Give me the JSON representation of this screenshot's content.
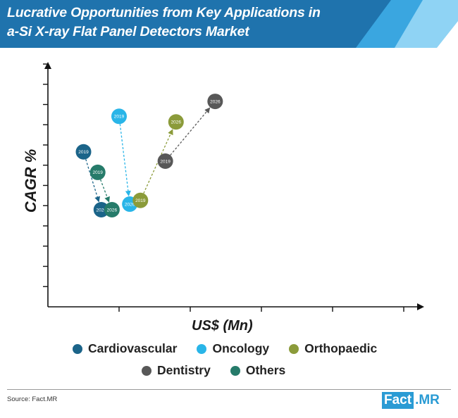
{
  "header": {
    "title_line1": "Lucrative Opportunities from Key Applications in",
    "title_line2": "a-Si X-ray Flat Panel Detectors Market",
    "colors": {
      "dark": "#1f73ad",
      "mid": "#3aa6e0",
      "light": "#8fd3f4"
    }
  },
  "chart_data": {
    "type": "scatter",
    "title": "",
    "xlabel": "US$ (Mn)",
    "ylabel": "CAGR %",
    "xlim": [
      0,
      10
    ],
    "ylim": [
      0,
      13
    ],
    "x_ticks": 6,
    "y_ticks": 13,
    "grid": false,
    "legend_position": "bottom",
    "series": [
      {
        "name": "Cardiovascular",
        "color": "#1b6489",
        "points": [
          {
            "label": "2019",
            "x": 1.0,
            "y": 8.3
          },
          {
            "label": "2026",
            "x": 1.5,
            "y": 5.2
          }
        ]
      },
      {
        "name": "Oncology",
        "color": "#29b5e8",
        "points": [
          {
            "label": "2019",
            "x": 2.0,
            "y": 10.2
          },
          {
            "label": "2026",
            "x": 2.3,
            "y": 5.5
          }
        ]
      },
      {
        "name": "Orthopaedic",
        "color": "#8b9b3a",
        "points": [
          {
            "label": "2019",
            "x": 2.6,
            "y": 5.7
          },
          {
            "label": "2026",
            "x": 3.6,
            "y": 9.9
          }
        ]
      },
      {
        "name": "Dentistry",
        "color": "#585858",
        "points": [
          {
            "label": "2019",
            "x": 3.3,
            "y": 7.8
          },
          {
            "label": "2026",
            "x": 4.7,
            "y": 11.0
          }
        ]
      },
      {
        "name": "Others",
        "color": "#267b6a",
        "points": [
          {
            "label": "2019",
            "x": 1.4,
            "y": 7.2
          },
          {
            "label": "2026",
            "x": 1.8,
            "y": 5.2
          }
        ]
      }
    ]
  },
  "legend": {
    "row1": [
      {
        "label": "Cardiovascular",
        "color": "#1b6489"
      },
      {
        "label": "Oncology",
        "color": "#29b5e8"
      },
      {
        "label": "Orthopaedic",
        "color": "#8b9b3a"
      }
    ],
    "row2": [
      {
        "label": "Dentistry",
        "color": "#585858"
      },
      {
        "label": "Others",
        "color": "#267b6a"
      }
    ]
  },
  "footer": {
    "source": "Source: Fact.MR",
    "logo_part1": "Fact",
    "logo_part2": ".MR"
  }
}
